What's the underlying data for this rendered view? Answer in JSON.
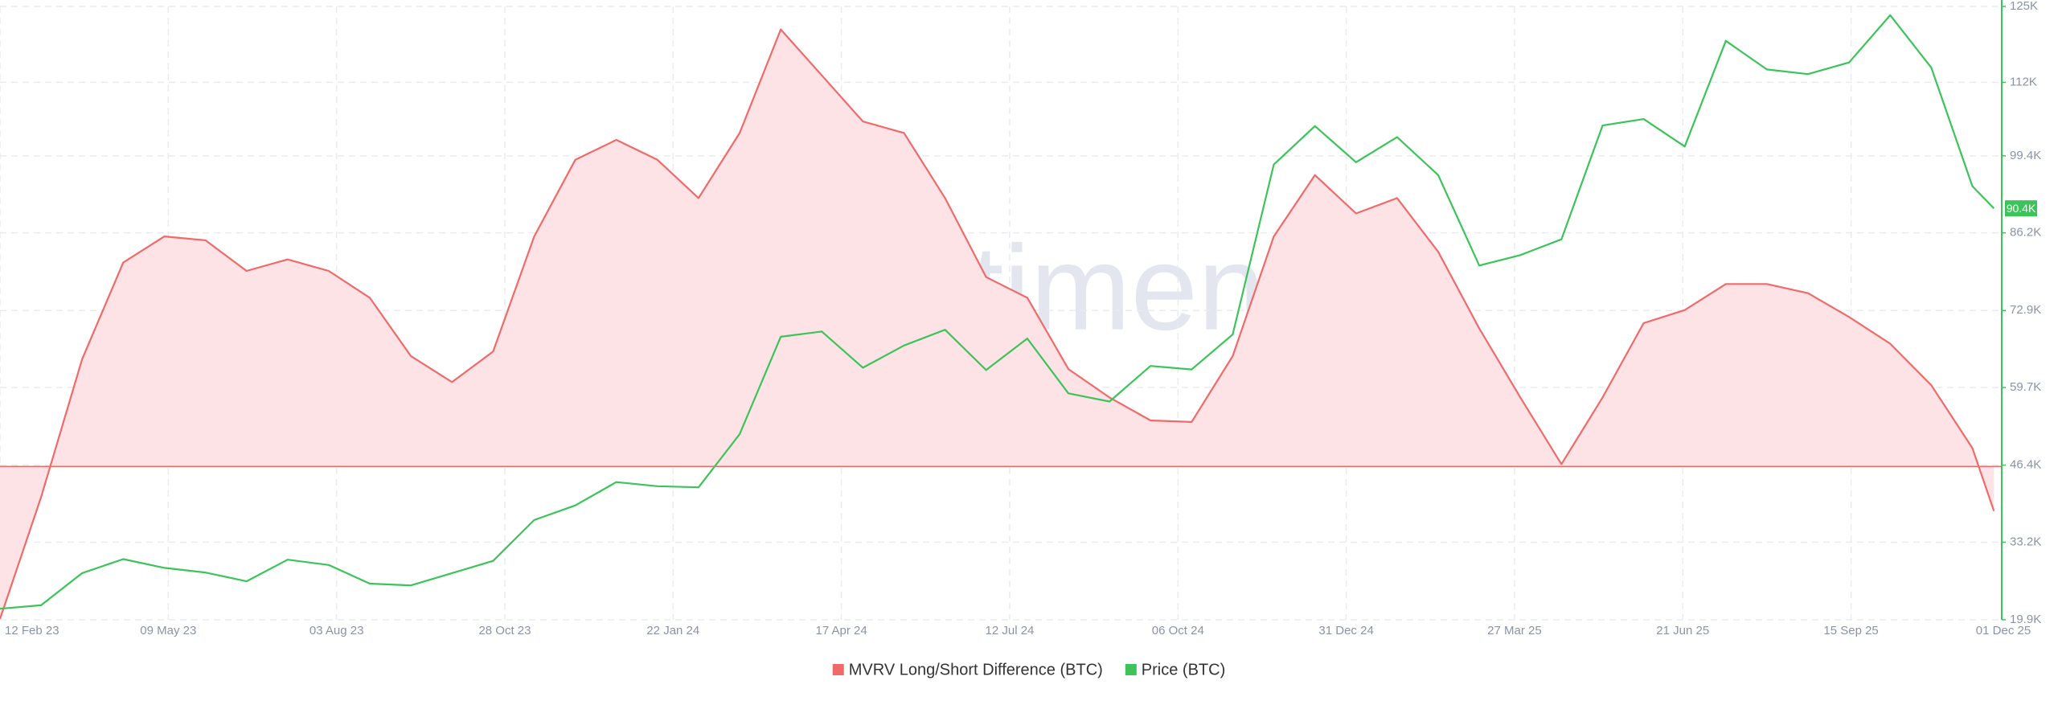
{
  "chart_data": {
    "type": "line",
    "watermark": "·santiment·",
    "x": [
      "2023-02-12",
      "2023-03-05",
      "2023-03-26",
      "2023-04-16",
      "2023-05-07",
      "2023-05-28",
      "2023-06-18",
      "2023-07-09",
      "2023-07-30",
      "2023-08-20",
      "2023-09-10",
      "2023-10-01",
      "2023-10-22",
      "2023-11-12",
      "2023-12-03",
      "2023-12-24",
      "2024-01-14",
      "2024-02-04",
      "2024-02-25",
      "2024-03-17",
      "2024-04-07",
      "2024-04-28",
      "2024-05-19",
      "2024-06-09",
      "2024-06-30",
      "2024-07-21",
      "2024-08-11",
      "2024-09-01",
      "2024-09-22",
      "2024-10-13",
      "2024-11-03",
      "2024-11-24",
      "2024-12-15",
      "2025-01-05",
      "2025-01-26",
      "2025-02-16",
      "2025-03-09",
      "2025-03-30",
      "2025-04-20",
      "2025-05-11",
      "2025-06-01",
      "2025-06-22",
      "2025-07-13",
      "2025-08-03",
      "2025-08-24",
      "2025-09-14",
      "2025-10-05",
      "2025-10-26",
      "2025-11-16",
      "2025-11-27"
    ],
    "xlim": [
      "2023-02-12",
      "2025-12-01"
    ],
    "xticks": [
      {
        "value": "2023-02-12",
        "label": "12 Feb 23"
      },
      {
        "value": "2023-05-09",
        "label": "09 May 23"
      },
      {
        "value": "2023-08-03",
        "label": "03 Aug 23"
      },
      {
        "value": "2023-10-28",
        "label": "28 Oct 23"
      },
      {
        "value": "2024-01-22",
        "label": "22 Jan 24"
      },
      {
        "value": "2024-04-17",
        "label": "17 Apr 24"
      },
      {
        "value": "2024-07-12",
        "label": "12 Jul 24"
      },
      {
        "value": "2024-10-06",
        "label": "06 Oct 24"
      },
      {
        "value": "2024-12-31",
        "label": "31 Dec 24"
      },
      {
        "value": "2025-03-27",
        "label": "27 Mar 25"
      },
      {
        "value": "2025-06-21",
        "label": "21 Jun 25"
      },
      {
        "value": "2025-09-15",
        "label": "15 Sep 25"
      },
      {
        "value": "2025-12-01",
        "label": "01 Dec 25"
      }
    ],
    "ylim": [
      -20,
      60
    ],
    "y2lim": [
      19900,
      125000
    ],
    "y2ticks": [
      {
        "value": 19900,
        "label": "19.9K"
      },
      {
        "value": 33200,
        "label": "33.2K"
      },
      {
        "value": 46400,
        "label": "46.4K"
      },
      {
        "value": 59700,
        "label": "59.7K"
      },
      {
        "value": 72900,
        "label": "72.9K"
      },
      {
        "value": 86200,
        "label": "86.2K"
      },
      {
        "value": 99400,
        "label": "99.4K"
      },
      {
        "value": 112000,
        "label": "112K"
      },
      {
        "value": 125000,
        "label": "125K"
      }
    ],
    "grid": true,
    "legend": "bottom",
    "series": [
      {
        "name": "MVRV Long/Short Difference (BTC)",
        "color": "#f06a6a",
        "fill": "#fde3e5",
        "axis": "y",
        "values": [
          -19.9,
          -4,
          14,
          26.6,
          30,
          29.5,
          25.5,
          27,
          25.5,
          22,
          14.4,
          11,
          15,
          30,
          40,
          42.6,
          40,
          35,
          43.5,
          57,
          51,
          45,
          43.5,
          35,
          24.7,
          22,
          12.7,
          9,
          6,
          5.8,
          14.4,
          30,
          38,
          33,
          35,
          28,
          18,
          9,
          0.3,
          9,
          18.7,
          20.4,
          23.8,
          23.8,
          22.6,
          19.5,
          16,
          10.6,
          2.4,
          -5.8
        ]
      },
      {
        "name": "Price (BTC)",
        "color": "#3cc35a",
        "axis": "y2",
        "current_label": "90.4K",
        "values": [
          21800,
          22400,
          27900,
          30300,
          28800,
          28000,
          26500,
          30200,
          29300,
          26100,
          25800,
          27900,
          30000,
          37000,
          39500,
          43500,
          42800,
          42600,
          51700,
          68400,
          69300,
          63100,
          66900,
          69600,
          62700,
          68100,
          58700,
          57300,
          63400,
          62800,
          68800,
          97900,
          104500,
          98300,
          102600,
          96100,
          80600,
          82400,
          85100,
          104600,
          105700,
          101000,
          119100,
          114200,
          113400,
          115400,
          123500,
          114500,
          94200,
          90400
        ]
      }
    ]
  }
}
